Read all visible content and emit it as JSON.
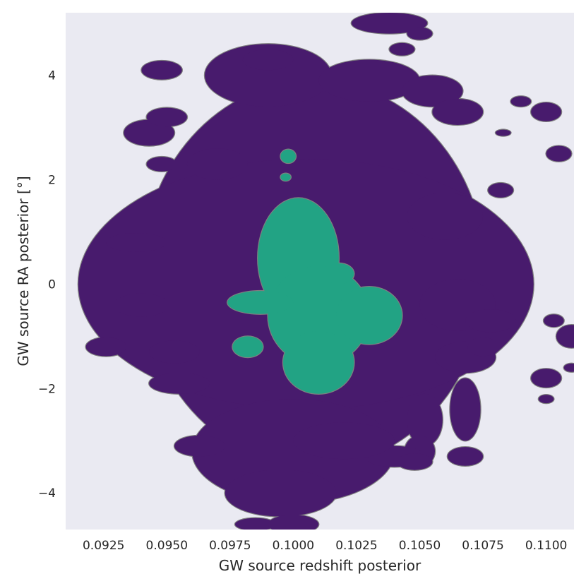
{
  "chart_data": {
    "type": "contour",
    "xlabel": "GW source redshift posterior",
    "ylabel": "GW source RA posterior [°]",
    "xlim": [
      0.091,
      0.1111
    ],
    "ylim": [
      -4.7,
      5.2
    ],
    "x_ticks": [
      0.0925,
      0.095,
      0.0975,
      0.1,
      0.1025,
      0.105,
      0.1075,
      0.11
    ],
    "x_tick_labels": [
      "0.0925",
      "0.0950",
      "0.0975",
      "0.1000",
      "0.1025",
      "0.1050",
      "0.1075",
      "0.1100"
    ],
    "y_ticks": [
      -4,
      -2,
      0,
      2,
      4
    ],
    "y_tick_labels": [
      "−4",
      "−2",
      "0",
      "2",
      "4"
    ],
    "grid": false,
    "background": "#eaeaf2",
    "levels": [
      {
        "name": "",
        "color": "#481b6d",
        "edge_color": "#7f7f7f",
        "blobs": [
          {
            "cx": 0.1008,
            "cy": 0.2,
            "rx": 0.0068,
            "ry": 3.7
          },
          {
            "cx": 0.1005,
            "cy": 0.0,
            "rx": 0.009,
            "ry": 2.4
          },
          {
            "cx": 0.1,
            "cy": -3.2,
            "rx": 0.004,
            "ry": 1.0
          },
          {
            "cx": 0.0995,
            "cy": -4.0,
            "rx": 0.0022,
            "ry": 0.45
          },
          {
            "cx": 0.0938,
            "cy": 0.8,
            "rx": 0.0012,
            "ry": 0.18
          },
          {
            "cx": 0.094,
            "cy": -0.4,
            "rx": 0.0011,
            "ry": 0.22
          },
          {
            "cx": 0.0926,
            "cy": -1.2,
            "rx": 0.0008,
            "ry": 0.18
          },
          {
            "cx": 0.0953,
            "cy": -1.3,
            "rx": 0.001,
            "ry": 0.22
          },
          {
            "cx": 0.0955,
            "cy": -1.9,
            "rx": 0.0012,
            "ry": 0.2
          },
          {
            "cx": 0.0963,
            "cy": -3.1,
            "rx": 0.001,
            "ry": 0.2
          },
          {
            "cx": 0.0948,
            "cy": 4.1,
            "rx": 0.0008,
            "ry": 0.18
          },
          {
            "cx": 0.0943,
            "cy": 2.9,
            "rx": 0.001,
            "ry": 0.25
          },
          {
            "cx": 0.095,
            "cy": 3.2,
            "rx": 0.0008,
            "ry": 0.18
          },
          {
            "cx": 0.0948,
            "cy": 2.3,
            "rx": 0.0006,
            "ry": 0.14
          },
          {
            "cx": 0.097,
            "cy": 2.3,
            "rx": 0.0012,
            "ry": 0.3
          },
          {
            "cx": 0.099,
            "cy": 4.0,
            "rx": 0.0025,
            "ry": 0.6
          },
          {
            "cx": 0.103,
            "cy": 3.9,
            "rx": 0.002,
            "ry": 0.4
          },
          {
            "cx": 0.099,
            "cy": 4.3,
            "rx": 0.001,
            "ry": 0.2
          },
          {
            "cx": 0.1038,
            "cy": 5.0,
            "rx": 0.0015,
            "ry": 0.2
          },
          {
            "cx": 0.1043,
            "cy": 4.5,
            "rx": 0.0005,
            "ry": 0.12
          },
          {
            "cx": 0.105,
            "cy": 4.8,
            "rx": 0.0005,
            "ry": 0.12
          },
          {
            "cx": 0.1055,
            "cy": 3.7,
            "rx": 0.0012,
            "ry": 0.3
          },
          {
            "cx": 0.1065,
            "cy": 3.3,
            "rx": 0.001,
            "ry": 0.25
          },
          {
            "cx": 0.106,
            "cy": 1.3,
            "rx": 0.0015,
            "ry": 0.45
          },
          {
            "cx": 0.1065,
            "cy": -0.4,
            "rx": 0.0015,
            "ry": 0.5
          },
          {
            "cx": 0.1068,
            "cy": -1.4,
            "rx": 0.0012,
            "ry": 0.3
          },
          {
            "cx": 0.1078,
            "cy": -0.7,
            "rx": 0.001,
            "ry": 0.22
          },
          {
            "cx": 0.1075,
            "cy": -1.2,
            "rx": 0.0006,
            "ry": 0.18
          },
          {
            "cx": 0.1068,
            "cy": -2.4,
            "rx": 0.0006,
            "ry": 0.6
          },
          {
            "cx": 0.1068,
            "cy": -3.3,
            "rx": 0.0007,
            "ry": 0.18
          },
          {
            "cx": 0.1052,
            "cy": -2.6,
            "rx": 0.0007,
            "ry": 0.5
          },
          {
            "cx": 0.105,
            "cy": -3.2,
            "rx": 0.0006,
            "ry": 0.3
          },
          {
            "cx": 0.104,
            "cy": -3.3,
            "rx": 0.0012,
            "ry": 0.2
          },
          {
            "cx": 0.1048,
            "cy": -3.4,
            "rx": 0.0007,
            "ry": 0.16
          },
          {
            "cx": 0.102,
            "cy": -3.0,
            "rx": 0.002,
            "ry": 0.35
          },
          {
            "cx": 0.1082,
            "cy": 1.8,
            "rx": 0.0005,
            "ry": 0.14
          },
          {
            "cx": 0.1083,
            "cy": 2.9,
            "rx": 0.0003,
            "ry": 0.06
          },
          {
            "cx": 0.109,
            "cy": 3.5,
            "rx": 0.0004,
            "ry": 0.1
          },
          {
            "cx": 0.11,
            "cy": 3.3,
            "rx": 0.0006,
            "ry": 0.18
          },
          {
            "cx": 0.1105,
            "cy": 2.5,
            "rx": 0.0005,
            "ry": 0.15
          },
          {
            "cx": 0.1103,
            "cy": -0.7,
            "rx": 0.0004,
            "ry": 0.12
          },
          {
            "cx": 0.11,
            "cy": -1.8,
            "rx": 0.0006,
            "ry": 0.18
          },
          {
            "cx": 0.11,
            "cy": -2.2,
            "rx": 0.0003,
            "ry": 0.08
          },
          {
            "cx": 0.111,
            "cy": -1.0,
            "rx": 0.0006,
            "ry": 0.22
          },
          {
            "cx": 0.111,
            "cy": -1.6,
            "rx": 0.0003,
            "ry": 0.08
          },
          {
            "cx": 0.0985,
            "cy": -4.6,
            "rx": 0.0008,
            "ry": 0.12
          },
          {
            "cx": 0.1,
            "cy": -4.6,
            "rx": 0.001,
            "ry": 0.18
          }
        ]
      },
      {
        "name": "",
        "color": "#22a384",
        "edge_color": "#7f7f7f",
        "blobs": [
          {
            "cx": 0.1002,
            "cy": 0.5,
            "rx": 0.0016,
            "ry": 1.15
          },
          {
            "cx": 0.101,
            "cy": -0.6,
            "rx": 0.002,
            "ry": 0.95
          },
          {
            "cx": 0.101,
            "cy": -1.5,
            "rx": 0.0014,
            "ry": 0.6
          },
          {
            "cx": 0.103,
            "cy": -0.6,
            "rx": 0.0013,
            "ry": 0.55
          },
          {
            "cx": 0.0987,
            "cy": -0.35,
            "rx": 0.0013,
            "ry": 0.22
          },
          {
            "cx": 0.0982,
            "cy": -1.2,
            "rx": 0.0006,
            "ry": 0.2
          },
          {
            "cx": 0.0998,
            "cy": 2.45,
            "rx": 0.0003,
            "ry": 0.13
          },
          {
            "cx": 0.0997,
            "cy": 2.05,
            "rx": 0.0002,
            "ry": 0.07
          },
          {
            "cx": 0.1018,
            "cy": 0.2,
            "rx": 0.0006,
            "ry": 0.2
          }
        ]
      }
    ]
  }
}
